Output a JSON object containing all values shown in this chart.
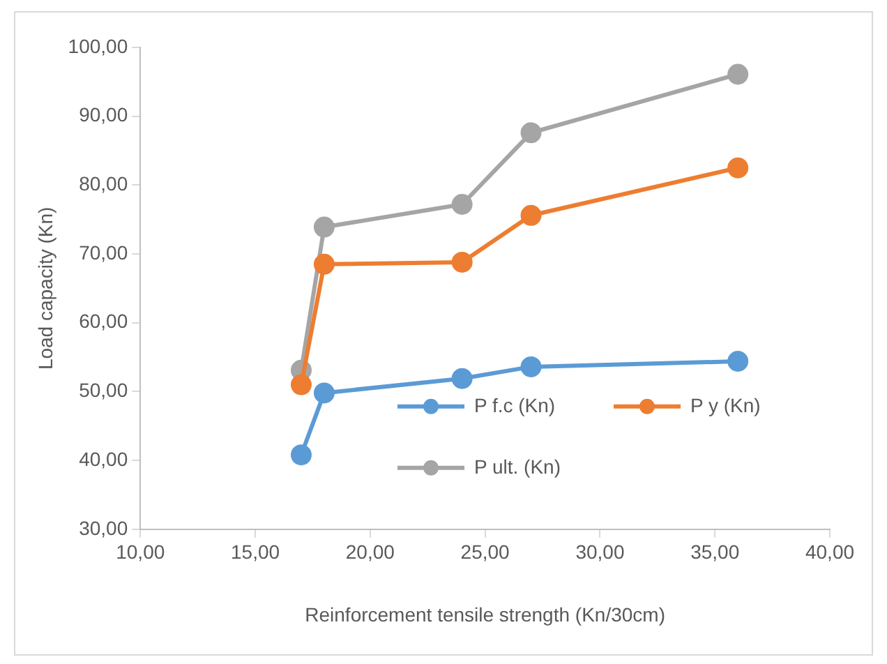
{
  "chart_data": {
    "type": "line",
    "xlabel": "Reinforcement tensile strength (Kn/30cm)",
    "ylabel": "Load capacity (Kn)",
    "x": [
      17,
      18,
      24,
      27,
      36
    ],
    "series": [
      {
        "name": "P f.c (Kn)",
        "color": "#5b9bd5",
        "values": [
          40.8,
          49.8,
          51.9,
          53.6,
          54.4
        ]
      },
      {
        "name": "P y (Kn)",
        "color": "#ed7d31",
        "values": [
          51,
          68.5,
          68.8,
          75.6,
          82.5
        ]
      },
      {
        "name": "P ult. (Kn)",
        "color": "#a5a5a5",
        "values": [
          53.1,
          73.9,
          77.2,
          87.6,
          96.1
        ]
      }
    ],
    "xlim": [
      10,
      40
    ],
    "xticks": [
      {
        "value": 10,
        "label": "10,00"
      },
      {
        "value": 15,
        "label": "15,00"
      },
      {
        "value": 20,
        "label": "20,00"
      },
      {
        "value": 25,
        "label": "25,00"
      },
      {
        "value": 30,
        "label": "30,00"
      },
      {
        "value": 35,
        "label": "35,00"
      },
      {
        "value": 40,
        "label": "40,00"
      }
    ],
    "ylim": [
      30,
      100
    ],
    "yticks": [
      {
        "value": 30,
        "label": "30,00"
      },
      {
        "value": 40,
        "label": "40,00"
      },
      {
        "value": 50,
        "label": "50,00"
      },
      {
        "value": 60,
        "label": "60,00"
      },
      {
        "value": 70,
        "label": "70,00"
      },
      {
        "value": 80,
        "label": "80,00"
      },
      {
        "value": 90,
        "label": "90,00"
      },
      {
        "value": 100,
        "label": "100,00"
      }
    ],
    "grid": false,
    "legend": "bottom right",
    "marker": "circle",
    "line_style": "solid"
  }
}
